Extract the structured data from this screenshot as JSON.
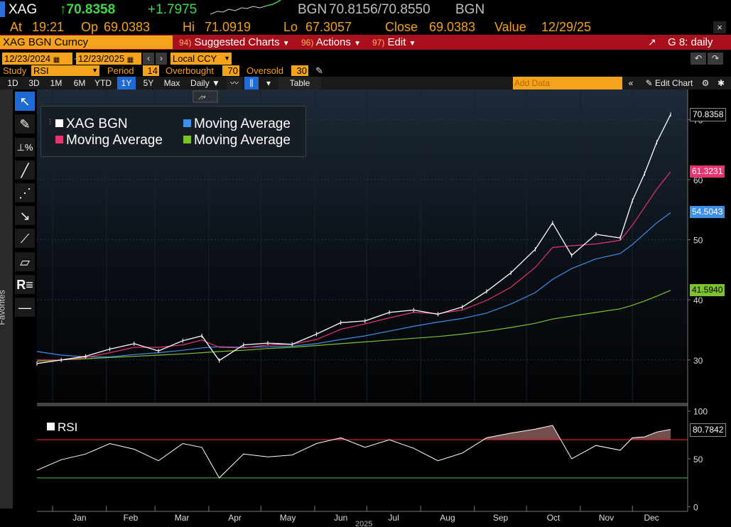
{
  "header": {
    "ticker": "XAG",
    "last": "↑70.8358",
    "change": "+1.7975",
    "quote_label": "BGN",
    "bid_ask": "70.8156/70.8550",
    "quote_label2": "BGN",
    "at_label": "At",
    "at_value": "19:21",
    "op_label": "Op",
    "op_value": "69.0383",
    "hi_label": "Hi",
    "hi_value": "71.0919",
    "lo_label": "Lo",
    "lo_value": "67.3057",
    "close_label": "Close",
    "close_value": "69.0383",
    "value_label": "Value",
    "value_value": "12/29/25"
  },
  "menubar": {
    "security": "XAG BGN Curncy",
    "suggested_num": "94)",
    "suggested": "Suggested Charts",
    "actions_num": "96)",
    "actions": "Actions",
    "edit_num": "97)",
    "edit": "Edit",
    "chart_id": "G 8: daily"
  },
  "controls": {
    "start_date": "12/23/2024",
    "end_date": "12/23/2025",
    "currency": "Local CCY",
    "study_label": "Study",
    "study_value": "RSI",
    "period_label": "Period",
    "period_value": "14",
    "overbought_label": "Overbought",
    "overbought_value": "70",
    "oversold_label": "Oversold",
    "oversold_value": "30"
  },
  "toolbar": {
    "ranges": [
      "1D",
      "3D",
      "1M",
      "6M",
      "YTD",
      "1Y",
      "5Y",
      "Max"
    ],
    "selected_range": "1Y",
    "frequency": "Daily ▼",
    "table": "Table",
    "add_data_placeholder": "Add Data",
    "edit_chart": "Edit Chart"
  },
  "sidebar": {
    "favorites": "Favorites"
  },
  "colors": {
    "price": "#ffffff",
    "ma_short": "#e8336e",
    "ma_mid": "#3d8fe8",
    "ma_long": "#7cc22a",
    "rsi": "#ffffff",
    "overbought_line": "#d0202a",
    "oversold_line": "#3ca032",
    "accent": "#f5a31c"
  },
  "chart_data": [
    {
      "type": "line",
      "title": "",
      "ylim": [
        23,
        75
      ],
      "yticks": [
        30,
        40,
        50,
        60,
        70
      ],
      "grid": true,
      "legend_position": "top-left",
      "legend": [
        "XAG BGN",
        "Moving Average",
        "Moving Average",
        "Moving Average"
      ],
      "x_months": [
        "Jan",
        "Feb",
        "Mar",
        "Apr",
        "May",
        "Jun",
        "Jul",
        "Aug",
        "Sep",
        "Oct",
        "Nov",
        "Dec"
      ],
      "x": [
        "12/23/2024",
        "01/06/2025",
        "01/20/2025",
        "02/03/2025",
        "02/17/2025",
        "03/03/2025",
        "03/17/2025",
        "03/28/2025",
        "04/07/2025",
        "04/21/2025",
        "05/05/2025",
        "05/19/2025",
        "06/02/2025",
        "06/16/2025",
        "06/30/2025",
        "07/14/2025",
        "07/28/2025",
        "08/11/2025",
        "08/25/2025",
        "09/08/2025",
        "09/22/2025",
        "10/06/2025",
        "10/16/2025",
        "10/27/2025",
        "11/10/2025",
        "11/24/2025",
        "12/01/2025",
        "12/08/2025",
        "12/15/2025",
        "12/23/2025"
      ],
      "series": [
        {
          "name": "XAG BGN",
          "values": [
            29.4,
            30.0,
            30.6,
            31.8,
            32.7,
            31.5,
            33.2,
            34.0,
            29.9,
            32.5,
            32.8,
            32.6,
            34.3,
            36.2,
            36.5,
            37.9,
            38.3,
            37.6,
            38.8,
            41.4,
            44.5,
            48.4,
            52.8,
            47.4,
            50.9,
            50.3,
            56.5,
            61.0,
            66.2,
            70.84
          ]
        },
        {
          "name": "Moving Average",
          "values": [
            30.0,
            30.0,
            30.4,
            31.2,
            32.1,
            32.1,
            32.5,
            33.3,
            32.1,
            32.0,
            32.5,
            32.6,
            33.4,
            35.1,
            36.0,
            37.0,
            37.9,
            37.7,
            38.3,
            39.9,
            42.1,
            45.4,
            48.7,
            49.0,
            49.3,
            49.9,
            52.4,
            55.4,
            58.4,
            61.32
          ]
        },
        {
          "name": "Moving Average",
          "values": [
            31.4,
            30.8,
            30.5,
            30.5,
            30.9,
            31.2,
            31.6,
            32.0,
            32.2,
            32.1,
            32.2,
            32.3,
            32.7,
            33.4,
            34.0,
            34.8,
            35.6,
            36.3,
            36.9,
            37.8,
            39.3,
            41.2,
            43.4,
            45.2,
            46.8,
            47.7,
            49.2,
            51.0,
            52.8,
            54.5
          ]
        },
        {
          "name": "Moving Average",
          "values": [
            29.8,
            30.0,
            30.2,
            30.4,
            30.6,
            30.8,
            31.0,
            31.2,
            31.4,
            31.6,
            31.9,
            32.1,
            32.4,
            32.7,
            33.0,
            33.3,
            33.6,
            33.9,
            34.3,
            34.8,
            35.4,
            36.1,
            36.8,
            37.3,
            37.9,
            38.5,
            39.1,
            39.8,
            40.6,
            41.59
          ]
        }
      ],
      "last_labels": [
        "70.8358",
        "61.3231",
        "54.5043",
        "41.5940"
      ]
    },
    {
      "type": "line",
      "title": "RSI",
      "ylim": [
        -5,
        105
      ],
      "yticks": [
        0,
        50,
        100
      ],
      "overbought": 70,
      "oversold": 30,
      "x": [
        "12/23/2024",
        "01/06/2025",
        "01/20/2025",
        "02/03/2025",
        "02/17/2025",
        "03/03/2025",
        "03/17/2025",
        "03/28/2025",
        "04/07/2025",
        "04/21/2025",
        "05/05/2025",
        "05/19/2025",
        "06/02/2025",
        "06/16/2025",
        "06/30/2025",
        "07/14/2025",
        "07/28/2025",
        "08/11/2025",
        "08/25/2025",
        "09/08/2025",
        "09/22/2025",
        "10/06/2025",
        "10/16/2025",
        "10/27/2025",
        "11/10/2025",
        "11/24/2025",
        "12/01/2025",
        "12/08/2025",
        "12/15/2025",
        "12/23/2025"
      ],
      "series": [
        {
          "name": "RSI",
          "values": [
            38,
            49,
            55,
            66,
            60,
            48,
            66,
            62,
            30,
            55,
            52,
            54,
            66,
            72,
            62,
            70,
            61,
            48,
            56,
            72,
            77,
            81,
            85,
            50,
            64,
            59,
            72,
            73,
            78,
            80.78
          ]
        }
      ],
      "last_label": "80.7842"
    }
  ],
  "x_axis_year": "2025"
}
